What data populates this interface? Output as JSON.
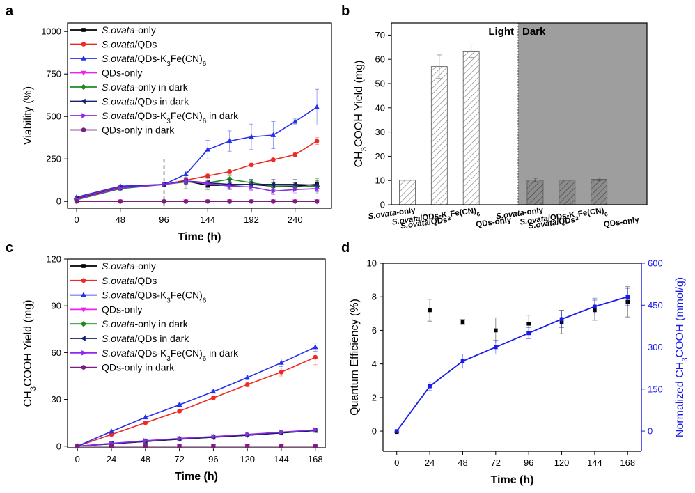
{
  "chart_data": [
    {
      "panel": "a",
      "type": "line",
      "xlabel": "Time (h)",
      "ylabel": "Viability (%)",
      "xlim": [
        -10,
        280
      ],
      "ylim": [
        -40,
        1050
      ],
      "xticks": [
        0,
        48,
        96,
        144,
        192,
        240
      ],
      "yticks": [
        0,
        250,
        500,
        750,
        1000
      ],
      "legend_position": "top-left",
      "annotation": "dashed vertical line at 96 h",
      "series": [
        {
          "name": "S.ovata-only",
          "marker": "square",
          "color": "#000000",
          "x": [
            0,
            48,
            96,
            120,
            144,
            168,
            192,
            216,
            240,
            264
          ],
          "y": [
            10,
            80,
            100,
            120,
            95,
            95,
            100,
            90,
            90,
            100
          ],
          "err": [
            0,
            0,
            0,
            15,
            25,
            20,
            20,
            20,
            20,
            20
          ]
        },
        {
          "name": "S.ovata/QDs",
          "marker": "circle",
          "color": "#ee2a24",
          "x": [
            0,
            48,
            96,
            120,
            144,
            168,
            192,
            216,
            240,
            264
          ],
          "y": [
            20,
            85,
            100,
            125,
            150,
            175,
            215,
            245,
            275,
            355
          ],
          "err": [
            0,
            0,
            0,
            10,
            15,
            15,
            10,
            10,
            10,
            20
          ]
        },
        {
          "name": "S.ovata/QDs-K3Fe(CN)6",
          "marker": "triangle-up",
          "color": "#2530ee",
          "x": [
            0,
            48,
            96,
            120,
            144,
            168,
            192,
            216,
            240,
            264
          ],
          "y": [
            25,
            90,
            100,
            160,
            305,
            355,
            380,
            390,
            470,
            555
          ],
          "err": [
            0,
            0,
            0,
            20,
            55,
            60,
            75,
            80,
            15,
            105
          ]
        },
        {
          "name": "QDs-only",
          "marker": "triangle-down",
          "color": "#ee22ee",
          "x": [
            0,
            48,
            96,
            120,
            144,
            168,
            192,
            216,
            240,
            264
          ],
          "y": [
            0,
            0,
            0,
            0,
            0,
            0,
            0,
            0,
            0,
            0
          ]
        },
        {
          "name": "S.ovata-only in dark",
          "marker": "diamond",
          "color": "#1e8c1e",
          "x": [
            0,
            48,
            96,
            120,
            144,
            168,
            192,
            216,
            240,
            264
          ],
          "y": [
            10,
            75,
            100,
            115,
            110,
            130,
            110,
            90,
            85,
            90
          ],
          "err": [
            0,
            0,
            0,
            40,
            30,
            20,
            20,
            25,
            25,
            45
          ]
        },
        {
          "name": "S.ovata/QDs in dark",
          "marker": "triangle-left",
          "color": "#151f6e",
          "x": [
            0,
            48,
            96,
            120,
            144,
            168,
            192,
            216,
            240,
            264
          ],
          "y": [
            15,
            80,
            100,
            120,
            110,
            100,
            100,
            100,
            100,
            95
          ],
          "err": [
            0,
            0,
            0,
            20,
            30,
            30,
            30,
            30,
            30,
            30
          ]
        },
        {
          "name": "S.ovata/QDs-K3Fe(CN)6 in dark",
          "marker": "triangle-right",
          "color": "#8c2ae8",
          "x": [
            0,
            48,
            96,
            120,
            144,
            168,
            192,
            216,
            240,
            264
          ],
          "y": [
            12,
            78,
            100,
            118,
            105,
            90,
            85,
            60,
            70,
            75
          ],
          "err": [
            0,
            0,
            0,
            15,
            20,
            20,
            20,
            20,
            20,
            20
          ]
        },
        {
          "name": "QDs-only in dark",
          "marker": "circle",
          "color": "#7a1f7a",
          "x": [
            0,
            48,
            96,
            120,
            144,
            168,
            192,
            216,
            240,
            264
          ],
          "y": [
            0,
            0,
            0,
            0,
            0,
            0,
            0,
            0,
            0,
            0
          ]
        }
      ]
    },
    {
      "panel": "b",
      "type": "bar",
      "ylabel": "CH3COOH Yield (mg)",
      "ylim": [
        0,
        75
      ],
      "yticks": [
        0,
        10,
        20,
        30,
        40,
        50,
        60,
        70
      ],
      "regions": [
        {
          "label": "Light",
          "shade": "#ffffff"
        },
        {
          "label": "Dark",
          "shade": "#9e9e9e"
        }
      ],
      "categories": [
        "S.ovata-only",
        "S.ovata/QDs",
        "S.ovata/QDs-K3Fe(CN)6",
        "QDs-only",
        "S.ovata-only",
        "S.ovata/QDs",
        "S.ovata/QDs-K3Fe(CN)6",
        "QDs-only"
      ],
      "values": [
        10.1,
        57.0,
        63.4,
        0,
        10.2,
        10.1,
        10.5,
        0
      ],
      "err": [
        0,
        4.8,
        2.6,
        0,
        0.7,
        0,
        0.6,
        0
      ]
    },
    {
      "panel": "c",
      "type": "line",
      "xlabel": "Time (h)",
      "ylabel": "CH3COOH Yield (mg)",
      "xlim": [
        -7,
        175
      ],
      "ylim": [
        -1,
        120
      ],
      "xticks": [
        0,
        24,
        48,
        72,
        96,
        120,
        144,
        168
      ],
      "yticks": [
        0,
        30,
        60,
        90,
        120
      ],
      "legend_position": "top-left",
      "series": [
        {
          "name": "S.ovata-only",
          "marker": "square",
          "color": "#000000",
          "x": [
            0,
            24,
            48,
            72,
            96,
            120,
            144,
            168
          ],
          "y": [
            0,
            1.5,
            3,
            4.5,
            5.8,
            7,
            8.5,
            10
          ]
        },
        {
          "name": "S.ovata/QDs",
          "marker": "circle",
          "color": "#ee2a24",
          "x": [
            0,
            24,
            48,
            72,
            96,
            120,
            144,
            168
          ],
          "y": [
            0,
            7.5,
            15,
            22.5,
            31,
            39.5,
            47.5,
            57
          ],
          "err": [
            0,
            0.8,
            0.8,
            1,
            1,
            1.5,
            2.5,
            4.8
          ]
        },
        {
          "name": "S.ovata/QDs-K3Fe(CN)6",
          "marker": "triangle-up",
          "color": "#2530ee",
          "x": [
            0,
            24,
            48,
            72,
            96,
            120,
            144,
            168
          ],
          "y": [
            0,
            9.5,
            18.5,
            26.5,
            35,
            44,
            53.5,
            63.5
          ],
          "err": [
            0,
            0.8,
            0.8,
            1,
            1,
            1.5,
            2.5,
            2.6
          ]
        },
        {
          "name": "QDs-only",
          "marker": "triangle-down",
          "color": "#ee22ee",
          "x": [
            0,
            24,
            48,
            72,
            96,
            120,
            144,
            168
          ],
          "y": [
            0,
            0,
            0,
            0,
            0,
            0,
            0,
            0
          ]
        },
        {
          "name": "S.ovata-only in dark",
          "marker": "diamond",
          "color": "#1e8c1e",
          "x": [
            0,
            24,
            48,
            72,
            96,
            120,
            144,
            168
          ],
          "y": [
            0,
            1.6,
            3.2,
            4.7,
            5.9,
            7.2,
            8.7,
            10.2
          ]
        },
        {
          "name": "S.ovata/QDs in dark",
          "marker": "triangle-left",
          "color": "#151f6e",
          "x": [
            0,
            24,
            48,
            72,
            96,
            120,
            144,
            168
          ],
          "y": [
            0,
            1.6,
            3.1,
            4.6,
            5.8,
            7.1,
            8.6,
            10.1
          ]
        },
        {
          "name": "S.ovata/QDs-K3Fe(CN)6 in dark",
          "marker": "triangle-right",
          "color": "#8c2ae8",
          "x": [
            0,
            24,
            48,
            72,
            96,
            120,
            144,
            168
          ],
          "y": [
            0,
            1.8,
            3.5,
            5,
            6.2,
            7.6,
            9,
            10.5
          ]
        },
        {
          "name": "QDs-only in dark",
          "marker": "circle",
          "color": "#7a1f7a",
          "x": [
            0,
            24,
            48,
            72,
            96,
            120,
            144,
            168
          ],
          "y": [
            0,
            0,
            0,
            0,
            0,
            0,
            0,
            0
          ]
        }
      ]
    },
    {
      "panel": "d",
      "type": "line",
      "xlabel": "Time (h)",
      "ylabel": "Quantum Efficiency (%)",
      "ylabel_right": "Normalized CH3COOH (mmol/g)",
      "xlim": [
        -10,
        178
      ],
      "ylim": [
        -1.2,
        10
      ],
      "ylim_right": [
        -72,
        600
      ],
      "xticks": [
        0,
        24,
        48,
        72,
        96,
        120,
        144,
        168
      ],
      "yticks": [
        0,
        2,
        4,
        6,
        8,
        10
      ],
      "yticks_right": [
        0,
        150,
        300,
        450,
        600
      ],
      "right_axis_color": "#1a1aee",
      "series": [
        {
          "name": "Quantum Efficiency",
          "axis": "left",
          "marker": "square",
          "color": "#000000",
          "x": [
            0,
            24,
            48,
            72,
            96,
            120,
            144,
            168
          ],
          "y": [
            -0.05,
            7.2,
            6.5,
            6.0,
            6.4,
            6.5,
            7.2,
            7.7
          ],
          "err": [
            0.05,
            0.65,
            0.15,
            0.75,
            0.5,
            0.7,
            0.6,
            0.9
          ]
        },
        {
          "name": "Normalized CH3COOH",
          "axis": "right",
          "marker": "square",
          "color": "#1a1aee",
          "x": [
            0,
            24,
            48,
            72,
            96,
            120,
            144,
            168
          ],
          "y": [
            0,
            160,
            250,
            300,
            350,
            400,
            445,
            480
          ],
          "err": [
            0,
            15,
            25,
            25,
            20,
            30,
            30,
            30
          ]
        }
      ]
    }
  ]
}
